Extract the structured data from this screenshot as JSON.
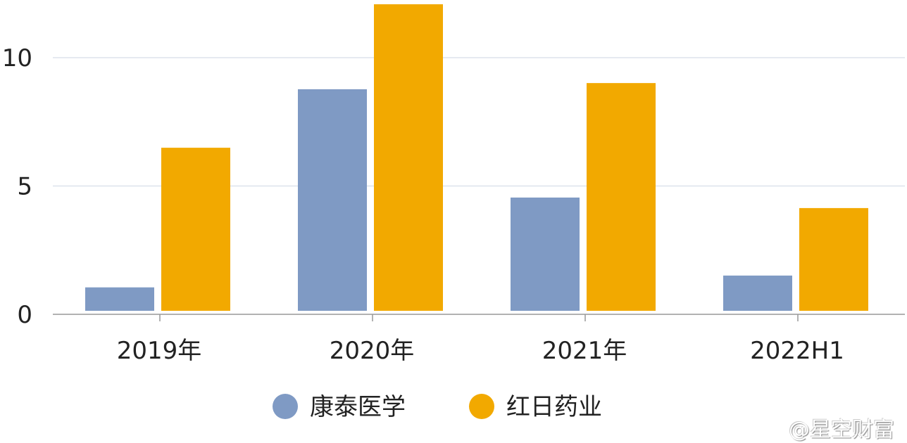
{
  "chart_data": {
    "type": "bar",
    "categories": [
      "2019年",
      "2020年",
      "2021年",
      "2022H1"
    ],
    "series": [
      {
        "name": "康泰医学",
        "color": "#7f9ac4",
        "values": [
          1.05,
          8.77,
          4.55,
          1.51
        ]
      },
      {
        "name": "红日药业",
        "color": "#f2a900",
        "values": [
          6.49,
          12.08,
          9.01,
          4.14
        ]
      }
    ],
    "yticks": [
      0,
      5,
      10
    ],
    "ylim": [
      0,
      12.2
    ],
    "grid": true,
    "legend": "bottom"
  },
  "watermark": "@星空财富"
}
